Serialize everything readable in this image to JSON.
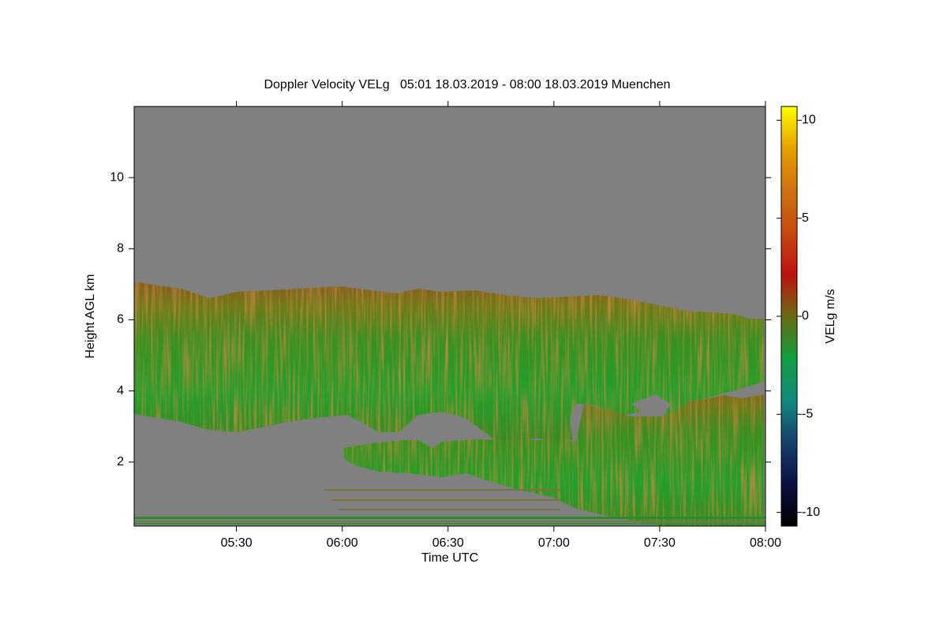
{
  "chart_data": {
    "type": "heatmap",
    "title": "Doppler Velocity VELg   05:01 18.03.2019 - 08:00 18.03.2019 Muenchen",
    "xlabel": "Time UTC",
    "ylabel": "Height AGL km",
    "colorbar_label": "VELg m/s",
    "xlim": [
      301,
      480
    ],
    "xticks": [
      {
        "value": 330,
        "label": "05:30"
      },
      {
        "value": 360,
        "label": "06:00"
      },
      {
        "value": 390,
        "label": "06:30"
      },
      {
        "value": 420,
        "label": "07:00"
      },
      {
        "value": 450,
        "label": "07:30"
      },
      {
        "value": 480,
        "label": "08:00"
      }
    ],
    "ylim": [
      0.2,
      12.0
    ],
    "yticks": [
      2,
      4,
      6,
      8,
      10
    ],
    "clim": [
      -10.7,
      10.7
    ],
    "cticks": [
      -10,
      -5,
      0,
      5,
      10
    ],
    "colormap": [
      "#000000",
      "#0a1040",
      "#14406a",
      "#108a80",
      "#10a040",
      "#6a6a10",
      "#c01010",
      "#c84a10",
      "#d07010",
      "#e8a000",
      "#ffff00"
    ],
    "background_color": "#808080"
  }
}
